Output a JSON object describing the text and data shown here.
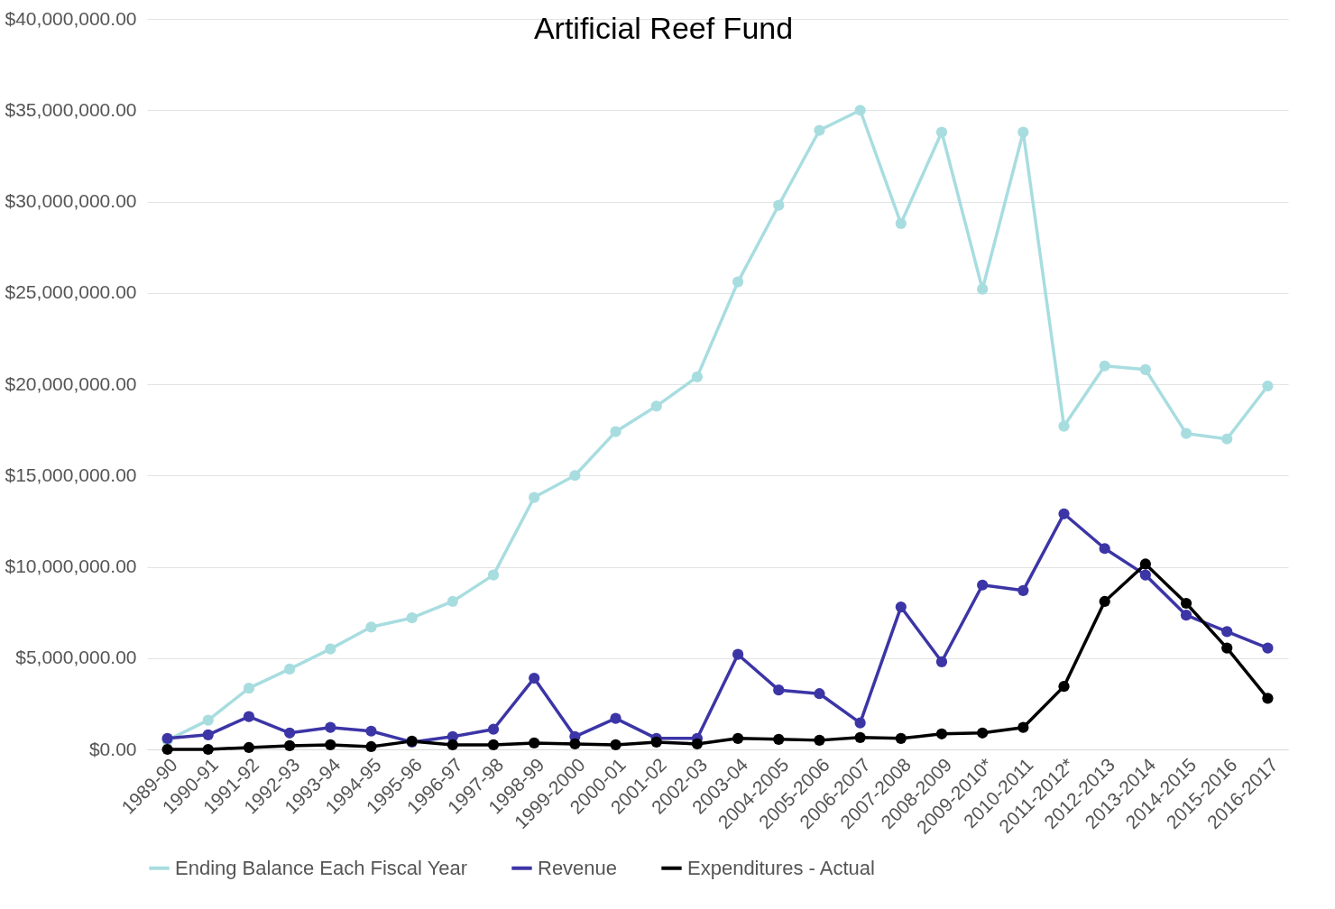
{
  "chart_data": {
    "type": "line",
    "title": "Artificial Reef Fund",
    "categories": [
      "1989-90",
      "1990-91",
      "1991-92",
      "1992-93",
      "1993-94",
      "1994-95",
      "1995-96",
      "1996-97",
      "1997-98",
      "1998-99",
      "1999-2000",
      "2000-01",
      "2001-02",
      "2002-03",
      "2003-04",
      "2004-2005",
      "2005-2006",
      "2006-2007",
      "2007-2008",
      "2008-2009",
      "2009-2010*",
      "2010-2011",
      "2011-2012*",
      "2012-2013",
      "2013-2014",
      "2014-2015",
      "2015-2016",
      "2016-2017"
    ],
    "series": [
      {
        "name": "Ending Balance Each Fiscal Year",
        "color": "#a8dde0",
        "values": [
          500000,
          1600000,
          3350000,
          4400000,
          5500000,
          6700000,
          7200000,
          8100000,
          9550000,
          13800000,
          15000000,
          17400000,
          18800000,
          20400000,
          25600000,
          29800000,
          33900000,
          35000000,
          28800000,
          33800000,
          25200000,
          33800000,
          17700000,
          21000000,
          20800000,
          17300000,
          17000000,
          19900000
        ]
      },
      {
        "name": "Revenue",
        "color": "#3c35a6",
        "values": [
          600000,
          800000,
          1800000,
          900000,
          1200000,
          1000000,
          400000,
          700000,
          1100000,
          3900000,
          700000,
          1700000,
          600000,
          600000,
          5200000,
          3250000,
          3050000,
          1450000,
          7800000,
          4800000,
          9000000,
          8700000,
          12900000,
          11000000,
          9550000,
          7350000,
          6450000,
          5550000
        ]
      },
      {
        "name": "Expenditures - Actual",
        "color": "#000000",
        "values": [
          0,
          0,
          100000,
          200000,
          250000,
          150000,
          450000,
          250000,
          250000,
          350000,
          300000,
          250000,
          400000,
          300000,
          600000,
          550000,
          500000,
          650000,
          600000,
          850000,
          900000,
          1200000,
          3450000,
          8100000,
          10150000,
          8000000,
          5550000,
          2800000
        ]
      }
    ],
    "ylim": [
      0,
      40000000
    ],
    "yticks": [
      {
        "value": 0,
        "label": "$0.00"
      },
      {
        "value": 5000000,
        "label": "$5,000,000.00"
      },
      {
        "value": 10000000,
        "label": "$10,000,000.00"
      },
      {
        "value": 15000000,
        "label": "$15,000,000.00"
      },
      {
        "value": 20000000,
        "label": "$20,000,000.00"
      },
      {
        "value": 25000000,
        "label": "$25,000,000.00"
      },
      {
        "value": 30000000,
        "label": "$30,000,000.00"
      },
      {
        "value": 35000000,
        "label": "$35,000,000.00"
      },
      {
        "value": 40000000,
        "label": "$40,000,000.00"
      }
    ],
    "grid": "y",
    "legend": "bottom",
    "marker": "circle",
    "line_style": "solid"
  }
}
